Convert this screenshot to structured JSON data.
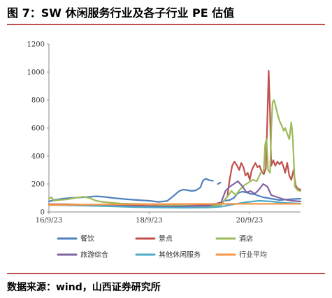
{
  "figure": {
    "title": "图 7：SW 休闲服务行业及各子行业 PE 估值",
    "source": "数据来源：wind，山西证券研究所"
  },
  "chart_data": {
    "type": "line",
    "title": "",
    "xlabel": "",
    "ylabel": "",
    "ylim": [
      0,
      1200
    ],
    "yticks": [
      0,
      200,
      400,
      600,
      800,
      1000,
      1200
    ],
    "xlim": [
      "2016-09-23",
      "2021-09-30"
    ],
    "xticks": [
      {
        "label": "16/9/23",
        "date": "2016-09-23"
      },
      {
        "label": "18/9/23",
        "date": "2018-09-23"
      },
      {
        "label": "20/9/23",
        "date": "2020-09-23"
      }
    ],
    "grid": false,
    "legend": "bottom",
    "series": [
      {
        "name": "餐饮",
        "color": "#4f81bd",
        "segments": [
          [
            [
              "2016-09-23",
              75
            ],
            [
              "2016-11-01",
              85
            ],
            [
              "2017-01-01",
              95
            ],
            [
              "2017-03-01",
              100
            ],
            [
              "2017-06-01",
              105
            ],
            [
              "2017-09-01",
              112
            ],
            [
              "2017-11-01",
              108
            ],
            [
              "2018-01-01",
              100
            ],
            [
              "2018-04-01",
              92
            ],
            [
              "2018-07-01",
              85
            ],
            [
              "2018-09-23",
              80
            ],
            [
              "2018-12-01",
              72
            ],
            [
              "2019-02-01",
              78
            ],
            [
              "2019-03-01",
              100
            ],
            [
              "2019-04-01",
              125
            ],
            [
              "2019-05-01",
              150
            ],
            [
              "2019-06-01",
              160
            ],
            [
              "2019-07-01",
              155
            ],
            [
              "2019-08-01",
              150
            ],
            [
              "2019-09-01",
              155
            ],
            [
              "2019-10-01",
              175
            ],
            [
              "2019-10-20",
              225
            ],
            [
              "2019-11-10",
              238
            ],
            [
              "2019-12-01",
              228
            ],
            [
              "2019-12-31",
              222
            ]
          ],
          [
            [
              "2020-02-05",
              200
            ],
            [
              "2020-02-25",
              210
            ]
          ],
          [
            [
              "2020-04-01",
              80
            ],
            [
              "2020-05-01",
              85
            ],
            [
              "2020-06-01",
              100
            ],
            [
              "2020-07-01",
              135
            ],
            [
              "2020-08-01",
              145
            ],
            [
              "2020-09-01",
              140
            ],
            [
              "2020-10-01",
              130
            ],
            [
              "2020-11-01",
              125
            ],
            [
              "2020-12-01",
              115
            ],
            [
              "2021-01-01",
              105
            ],
            [
              "2021-02-01",
              100
            ],
            [
              "2021-03-01",
              95
            ],
            [
              "2021-05-01",
              85
            ],
            [
              "2021-07-01",
              90
            ],
            [
              "2021-09-30",
              95
            ]
          ]
        ]
      },
      {
        "name": "景点",
        "color": "#c0504d",
        "segments": [
          [
            [
              "2016-09-23",
              55
            ],
            [
              "2017-01-01",
              55
            ],
            [
              "2017-06-01",
              52
            ],
            [
              "2018-01-01",
              48
            ],
            [
              "2018-06-01",
              45
            ],
            [
              "2018-12-01",
              42
            ],
            [
              "2019-06-01",
              45
            ],
            [
              "2019-12-01",
              48
            ],
            [
              "2020-03-01",
              55
            ],
            [
              "2020-04-15",
              110
            ],
            [
              "2020-05-01",
              230
            ],
            [
              "2020-05-20",
              330
            ],
            [
              "2020-06-05",
              360
            ],
            [
              "2020-06-25",
              330
            ],
            [
              "2020-07-10",
              300
            ],
            [
              "2020-07-25",
              350
            ],
            [
              "2020-08-10",
              320
            ],
            [
              "2020-08-25",
              260
            ],
            [
              "2020-09-10",
              280
            ],
            [
              "2020-09-25",
              230
            ],
            [
              "2020-10-10",
              300
            ],
            [
              "2020-10-25",
              330
            ],
            [
              "2020-11-05",
              350
            ],
            [
              "2020-11-20",
              320
            ],
            [
              "2020-12-05",
              330
            ],
            [
              "2020-12-20",
              290
            ],
            [
              "2021-01-05",
              270
            ],
            [
              "2021-01-20",
              310
            ],
            [
              "2021-02-01",
              700
            ],
            [
              "2021-02-10",
              1010
            ],
            [
              "2021-02-20",
              700
            ],
            [
              "2021-02-28",
              330
            ],
            [
              "2021-03-15",
              370
            ],
            [
              "2021-03-30",
              330
            ],
            [
              "2021-04-15",
              360
            ],
            [
              "2021-04-30",
              340
            ],
            [
              "2021-05-15",
              360
            ],
            [
              "2021-05-30",
              320
            ],
            [
              "2021-06-10",
              280
            ],
            [
              "2021-06-25",
              350
            ],
            [
              "2021-07-10",
              260
            ],
            [
              "2021-07-25",
              230
            ],
            [
              "2021-08-10",
              300
            ],
            [
              "2021-08-25",
              190
            ],
            [
              "2021-09-10",
              165
            ],
            [
              "2021-09-30",
              160
            ]
          ]
        ]
      },
      {
        "name": "酒店",
        "color": "#9bbb59",
        "segments": [
          [
            [
              "2016-09-23",
              95
            ],
            [
              "2016-10-10",
              105
            ],
            [
              "2016-11-01",
              80
            ],
            [
              "2016-12-01",
              85
            ],
            [
              "2017-02-01",
              90
            ],
            [
              "2017-04-01",
              100
            ],
            [
              "2017-06-01",
              108
            ],
            [
              "2017-07-15",
              100
            ],
            [
              "2017-09-01",
              80
            ],
            [
              "2017-11-01",
              70
            ],
            [
              "2018-01-01",
              65
            ],
            [
              "2018-03-01",
              60
            ],
            [
              "2018-06-01",
              58
            ],
            [
              "2018-09-23",
              55
            ],
            [
              "2019-01-01",
              50
            ],
            [
              "2019-06-01",
              45
            ],
            [
              "2019-12-01",
              40
            ],
            [
              "2020-03-01",
              50
            ],
            [
              "2020-04-15",
              110
            ],
            [
              "2020-05-15",
              150
            ],
            [
              "2020-06-15",
              120
            ],
            [
              "2020-07-15",
              160
            ],
            [
              "2020-08-15",
              190
            ],
            [
              "2020-09-15",
              210
            ],
            [
              "2020-10-15",
              230
            ],
            [
              "2020-11-15",
              220
            ],
            [
              "2020-12-15",
              280
            ],
            [
              "2021-01-05",
              300
            ],
            [
              "2021-01-15",
              480
            ],
            [
              "2021-01-25",
              520
            ],
            [
              "2021-02-05",
              300
            ],
            [
              "2021-02-20",
              280
            ],
            [
              "2021-03-01",
              600
            ],
            [
              "2021-03-10",
              780
            ],
            [
              "2021-03-20",
              800
            ],
            [
              "2021-04-01",
              760
            ],
            [
              "2021-04-15",
              700
            ],
            [
              "2021-04-30",
              650
            ],
            [
              "2021-05-15",
              620
            ],
            [
              "2021-05-30",
              580
            ],
            [
              "2021-06-10",
              600
            ],
            [
              "2021-06-25",
              560
            ],
            [
              "2021-07-10",
              520
            ],
            [
              "2021-07-25",
              640
            ],
            [
              "2021-08-05",
              520
            ],
            [
              "2021-08-20",
              180
            ],
            [
              "2021-09-10",
              155
            ],
            [
              "2021-09-30",
              150
            ]
          ]
        ]
      },
      {
        "name": "旅游综合",
        "color": "#8064a2",
        "segments": [
          [
            [
              "2016-09-23",
              50
            ],
            [
              "2017-01-01",
              52
            ],
            [
              "2017-06-01",
              50
            ],
            [
              "2018-01-01",
              45
            ],
            [
              "2018-06-01",
              40
            ],
            [
              "2018-12-01",
              38
            ],
            [
              "2019-06-01",
              40
            ],
            [
              "2019-12-01",
              45
            ],
            [
              "2020-03-01",
              70
            ],
            [
              "2020-04-01",
              150
            ],
            [
              "2020-05-01",
              180
            ],
            [
              "2020-06-01",
              200
            ],
            [
              "2020-07-01",
              220
            ],
            [
              "2020-08-01",
              185
            ],
            [
              "2020-09-01",
              140
            ],
            [
              "2020-10-01",
              150
            ],
            [
              "2020-11-01",
              130
            ],
            [
              "2020-12-01",
              160
            ],
            [
              "2021-01-01",
              200
            ],
            [
              "2021-02-01",
              180
            ],
            [
              "2021-03-01",
              120
            ],
            [
              "2021-04-01",
              110
            ],
            [
              "2021-05-01",
              100
            ],
            [
              "2021-06-01",
              90
            ],
            [
              "2021-07-01",
              85
            ],
            [
              "2021-08-01",
              80
            ],
            [
              "2021-09-30",
              75
            ]
          ]
        ]
      },
      {
        "name": "其他休闲服务",
        "color": "#4bacc6",
        "segments": [
          [
            [
              "2016-09-23",
              50
            ],
            [
              "2017-01-01",
              48
            ],
            [
              "2017-06-01",
              45
            ],
            [
              "2018-01-01",
              40
            ],
            [
              "2018-06-01",
              35
            ],
            [
              "2018-12-01",
              32
            ],
            [
              "2019-06-01",
              30
            ],
            [
              "2019-12-01",
              32
            ],
            [
              "2020-03-01",
              38
            ],
            [
              "2020-06-01",
              55
            ],
            [
              "2020-09-01",
              70
            ],
            [
              "2020-12-01",
              80
            ],
            [
              "2021-03-01",
              75
            ],
            [
              "2021-06-01",
              65
            ],
            [
              "2021-09-30",
              60
            ]
          ]
        ]
      },
      {
        "name": "行业平均",
        "color": "#f79646",
        "segments": [
          [
            [
              "2016-09-23",
              50
            ],
            [
              "2017-06-01",
              52
            ],
            [
              "2018-06-01",
              55
            ],
            [
              "2019-06-01",
              57
            ],
            [
              "2020-06-01",
              58
            ],
            [
              "2021-06-01",
              58
            ],
            [
              "2021-09-30",
              58
            ]
          ]
        ]
      }
    ]
  }
}
